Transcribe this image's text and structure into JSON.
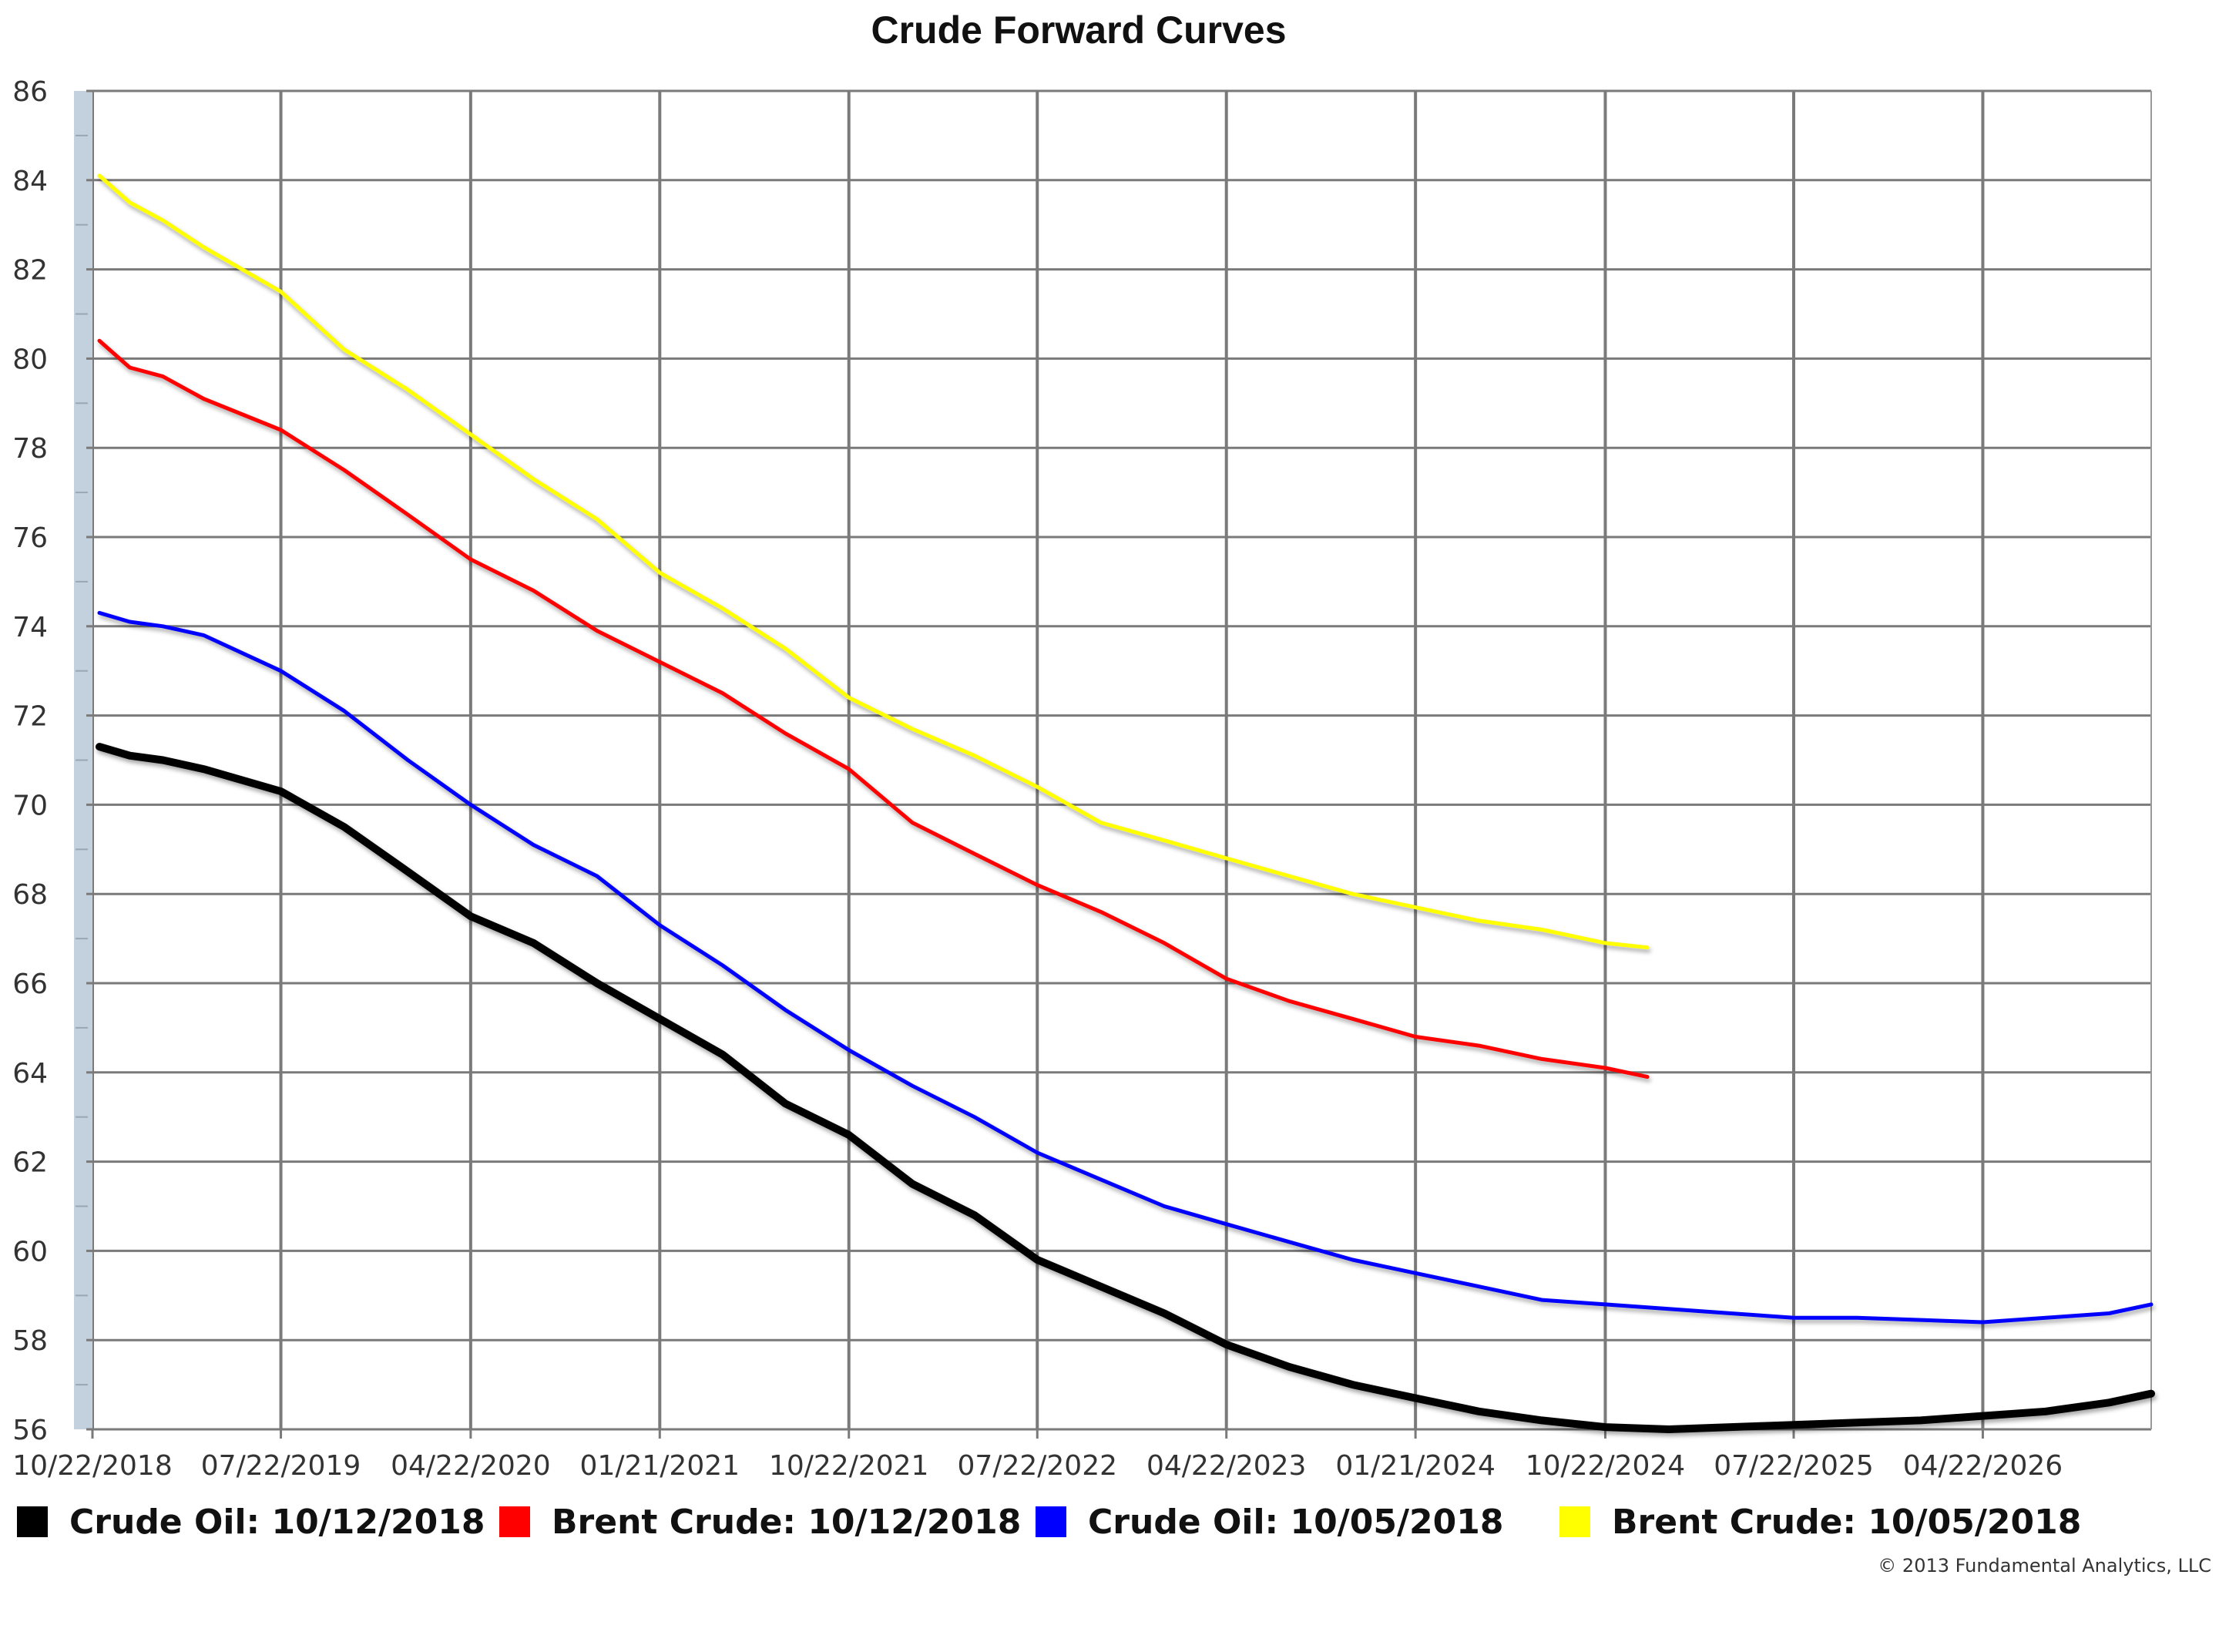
{
  "chart_data": {
    "type": "line",
    "title": "Crude Forward Curves",
    "xlabel": "",
    "ylabel": "",
    "x_ticks": [
      "10/22/2018",
      "07/22/2019",
      "04/22/2020",
      "01/21/2021",
      "10/22/2021",
      "07/22/2022",
      "04/22/2023",
      "01/21/2024",
      "10/22/2024",
      "07/22/2025",
      "04/22/2026"
    ],
    "xlim": [
      "10/22/2018",
      "12/22/2026"
    ],
    "ylim": [
      56,
      86
    ],
    "y_ticks": [
      56,
      58,
      60,
      62,
      64,
      66,
      68,
      70,
      72,
      74,
      76,
      78,
      80,
      82,
      84,
      86
    ],
    "grid": true,
    "legend_position": "bottom",
    "series": [
      {
        "name": "Crude Oil: 10/12/2018",
        "color": "#000000",
        "points": [
          [
            "11/01/2018",
            71.3
          ],
          [
            "12/15/2018",
            71.1
          ],
          [
            "02/01/2019",
            71.0
          ],
          [
            "04/01/2019",
            70.8
          ],
          [
            "07/22/2019",
            70.3
          ],
          [
            "10/22/2019",
            69.5
          ],
          [
            "01/22/2020",
            68.5
          ],
          [
            "04/22/2020",
            67.5
          ],
          [
            "07/22/2020",
            66.9
          ],
          [
            "10/22/2020",
            66.0
          ],
          [
            "01/21/2021",
            65.2
          ],
          [
            "04/22/2021",
            64.4
          ],
          [
            "07/22/2021",
            63.3
          ],
          [
            "10/22/2021",
            62.6
          ],
          [
            "01/22/2022",
            61.5
          ],
          [
            "04/22/2022",
            60.8
          ],
          [
            "07/22/2022",
            59.8
          ],
          [
            "10/22/2022",
            59.2
          ],
          [
            "01/22/2023",
            58.6
          ],
          [
            "04/22/2023",
            57.9
          ],
          [
            "07/22/2023",
            57.4
          ],
          [
            "10/22/2023",
            57.0
          ],
          [
            "01/21/2024",
            56.7
          ],
          [
            "04/22/2024",
            56.4
          ],
          [
            "07/22/2024",
            56.2
          ],
          [
            "10/22/2024",
            56.05
          ],
          [
            "01/22/2025",
            56.0
          ],
          [
            "04/22/2025",
            56.05
          ],
          [
            "07/22/2025",
            56.1
          ],
          [
            "10/22/2025",
            56.15
          ],
          [
            "01/22/2026",
            56.2
          ],
          [
            "04/22/2026",
            56.3
          ],
          [
            "07/22/2026",
            56.4
          ],
          [
            "10/22/2026",
            56.6
          ],
          [
            "12/22/2026",
            56.8
          ]
        ]
      },
      {
        "name": "Brent Crude: 10/12/2018",
        "color": "#ff0000",
        "points": [
          [
            "11/01/2018",
            80.4
          ],
          [
            "12/15/2018",
            79.8
          ],
          [
            "02/01/2019",
            79.6
          ],
          [
            "04/01/2019",
            79.1
          ],
          [
            "07/22/2019",
            78.4
          ],
          [
            "10/22/2019",
            77.5
          ],
          [
            "01/22/2020",
            76.5
          ],
          [
            "04/22/2020",
            75.5
          ],
          [
            "07/22/2020",
            74.8
          ],
          [
            "10/22/2020",
            73.9
          ],
          [
            "01/21/2021",
            73.2
          ],
          [
            "04/22/2021",
            72.5
          ],
          [
            "07/22/2021",
            71.6
          ],
          [
            "10/22/2021",
            70.8
          ],
          [
            "01/22/2022",
            69.6
          ],
          [
            "04/22/2022",
            68.9
          ],
          [
            "07/22/2022",
            68.2
          ],
          [
            "10/22/2022",
            67.6
          ],
          [
            "01/22/2023",
            66.9
          ],
          [
            "04/22/2023",
            66.1
          ],
          [
            "07/22/2023",
            65.6
          ],
          [
            "10/22/2023",
            65.2
          ],
          [
            "01/21/2024",
            64.8
          ],
          [
            "04/22/2024",
            64.6
          ],
          [
            "07/22/2024",
            64.3
          ],
          [
            "10/22/2024",
            64.1
          ],
          [
            "12/22/2024",
            63.9
          ]
        ]
      },
      {
        "name": "Crude Oil: 10/05/2018",
        "color": "#0000ff",
        "points": [
          [
            "11/01/2018",
            74.3
          ],
          [
            "12/15/2018",
            74.1
          ],
          [
            "02/01/2019",
            74.0
          ],
          [
            "04/01/2019",
            73.8
          ],
          [
            "07/22/2019",
            73.0
          ],
          [
            "10/22/2019",
            72.1
          ],
          [
            "01/22/2020",
            71.0
          ],
          [
            "04/22/2020",
            70.0
          ],
          [
            "07/22/2020",
            69.1
          ],
          [
            "10/22/2020",
            68.4
          ],
          [
            "01/21/2021",
            67.3
          ],
          [
            "04/22/2021",
            66.4
          ],
          [
            "07/22/2021",
            65.4
          ],
          [
            "10/22/2021",
            64.5
          ],
          [
            "01/22/2022",
            63.7
          ],
          [
            "04/22/2022",
            63.0
          ],
          [
            "07/22/2022",
            62.2
          ],
          [
            "10/22/2022",
            61.6
          ],
          [
            "01/22/2023",
            61.0
          ],
          [
            "04/22/2023",
            60.6
          ],
          [
            "07/22/2023",
            60.2
          ],
          [
            "10/22/2023",
            59.8
          ],
          [
            "01/21/2024",
            59.5
          ],
          [
            "04/22/2024",
            59.2
          ],
          [
            "07/22/2024",
            58.9
          ],
          [
            "10/22/2024",
            58.8
          ],
          [
            "01/22/2025",
            58.7
          ],
          [
            "04/22/2025",
            58.6
          ],
          [
            "07/22/2025",
            58.5
          ],
          [
            "10/22/2025",
            58.5
          ],
          [
            "01/22/2026",
            58.45
          ],
          [
            "04/22/2026",
            58.4
          ],
          [
            "07/22/2026",
            58.5
          ],
          [
            "10/22/2026",
            58.6
          ],
          [
            "12/22/2026",
            58.8
          ]
        ]
      },
      {
        "name": "Brent Crude: 10/05/2018",
        "color": "#ffff00",
        "points": [
          [
            "11/01/2018",
            84.1
          ],
          [
            "12/15/2018",
            83.5
          ],
          [
            "02/01/2019",
            83.1
          ],
          [
            "04/01/2019",
            82.5
          ],
          [
            "07/22/2019",
            81.5
          ],
          [
            "10/22/2019",
            80.2
          ],
          [
            "01/22/2020",
            79.3
          ],
          [
            "04/22/2020",
            78.3
          ],
          [
            "07/22/2020",
            77.3
          ],
          [
            "10/22/2020",
            76.4
          ],
          [
            "01/21/2021",
            75.2
          ],
          [
            "04/22/2021",
            74.4
          ],
          [
            "07/22/2021",
            73.5
          ],
          [
            "10/22/2021",
            72.4
          ],
          [
            "01/22/2022",
            71.7
          ],
          [
            "04/22/2022",
            71.1
          ],
          [
            "07/22/2022",
            70.4
          ],
          [
            "10/22/2022",
            69.6
          ],
          [
            "01/22/2023",
            69.2
          ],
          [
            "04/22/2023",
            68.8
          ],
          [
            "07/22/2023",
            68.4
          ],
          [
            "10/22/2023",
            68.0
          ],
          [
            "01/21/2024",
            67.7
          ],
          [
            "04/22/2024",
            67.4
          ],
          [
            "07/22/2024",
            67.2
          ],
          [
            "10/22/2024",
            66.9
          ],
          [
            "12/22/2024",
            66.8
          ]
        ]
      }
    ]
  },
  "copyright": "© 2013 Fundamental Analytics, LLC"
}
